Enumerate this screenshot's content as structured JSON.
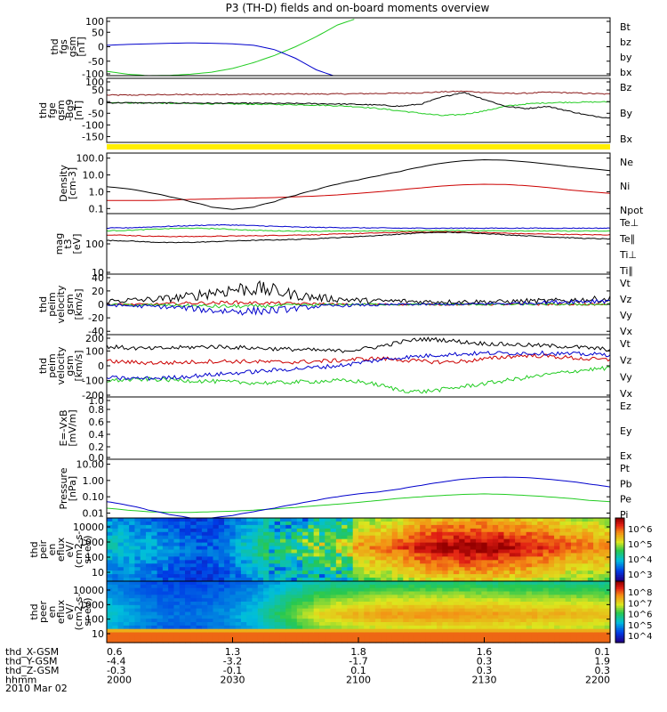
{
  "title": "P3 (TH-D) fields and on-board moments overview",
  "colors": {
    "black": "#000000",
    "red": "#cc0000",
    "green": "#22cc22",
    "blue": "#0000cc",
    "dark_red": "#8b1a1a",
    "yellow": "#ffee00"
  },
  "chart_data": {
    "type": "line",
    "time_axis": {
      "labels": [
        "2000",
        "2030",
        "2100",
        "2130",
        "2200"
      ],
      "range": [
        "20:00",
        "22:00"
      ]
    },
    "panels": [
      {
        "id": "fgs",
        "ylabel": [
          "thd",
          "fgs",
          "gsm",
          "[nT]"
        ],
        "yticks": [
          "100",
          "50",
          "0",
          "-50",
          "-100"
        ],
        "ylim": [
          -100,
          100
        ],
        "scale": "linear",
        "series": [
          {
            "name": "Bt",
            "color": "#000000",
            "values": []
          },
          {
            "name": "bz",
            "color": "#cc0000",
            "values": []
          },
          {
            "name": "by",
            "color": "#22cc22",
            "values": [
              -85,
              -95,
              -100,
              -99,
              -95,
              -88,
              -75,
              -55,
              -30,
              0,
              35,
              75,
              100,
              null,
              null,
              null,
              null,
              null,
              null,
              null,
              null,
              null,
              null,
              null,
              null
            ]
          },
          {
            "name": "bx",
            "color": "#0000cc",
            "values": [
              5,
              8,
              10,
              12,
              13,
              12,
              10,
              5,
              -10,
              -40,
              -80,
              -105,
              null,
              null,
              null,
              null,
              null,
              null,
              null,
              null,
              null,
              null,
              null,
              null,
              null
            ]
          }
        ]
      },
      {
        "id": "fgs_hires",
        "ylabel": [
          "thd",
          "fge",
          "gsm",
          "-Bg9",
          "[nT]"
        ],
        "yticks": [
          "100",
          "50",
          "0",
          "-50",
          "-100",
          "-150"
        ],
        "ylim": [
          -175,
          100
        ],
        "scale": "linear",
        "series": [
          {
            "name": "Bz",
            "color": "#8b1a1a",
            "values": [
              28,
              28,
              29,
              30,
              30,
              31,
              31,
              32,
              32,
              33,
              33,
              33,
              34,
              35,
              36,
              38,
              42,
              44,
              40,
              35,
              36,
              40,
              38,
              35,
              32
            ]
          },
          {
            "name": "By",
            "color": "#22cc22",
            "values": [
              -3,
              -5,
              -6,
              -7,
              -8,
              -9,
              -10,
              -11,
              -12,
              -13,
              -15,
              -18,
              -22,
              -30,
              -40,
              -50,
              -60,
              -55,
              -40,
              -20,
              -10,
              -5,
              -3,
              -2,
              -1
            ]
          },
          {
            "name": "Bx",
            "color": "#000000",
            "values": [
              -5,
              -5,
              -6,
              -6,
              -6,
              -7,
              -7,
              -7,
              -8,
              -8,
              -9,
              -10,
              -12,
              -15,
              -20,
              -10,
              20,
              40,
              10,
              -20,
              -30,
              -20,
              -40,
              -60,
              -70
            ]
          }
        ]
      },
      {
        "id": "density",
        "ylabel": [
          "Density",
          "[cm-3]"
        ],
        "yticks": [
          "100.0",
          "10.0",
          "1.0",
          "0.1"
        ],
        "ylim": [
          0.05,
          200
        ],
        "scale": "log",
        "series": [
          {
            "name": "Ne",
            "color": "#cc0000",
            "values": [
              0.3,
              0.3,
              0.3,
              0.32,
              0.35,
              0.37,
              0.4,
              0.42,
              0.45,
              0.5,
              0.55,
              0.65,
              0.8,
              1.0,
              1.3,
              1.7,
              2.2,
              2.6,
              2.8,
              2.7,
              2.3,
              1.8,
              1.3,
              1.0,
              0.8
            ]
          },
          {
            "name": "Ni",
            "color": "#000000",
            "values": [
              2.0,
              1.5,
              0.9,
              0.5,
              0.25,
              0.12,
              0.09,
              0.12,
              0.25,
              0.6,
              1.3,
              2.8,
              5,
              9,
              16,
              30,
              50,
              70,
              80,
              75,
              60,
              45,
              32,
              24,
              18
            ]
          },
          {
            "name": "Npot",
            "color": "#0000cc",
            "values": []
          }
        ]
      },
      {
        "id": "temperature",
        "ylabel": [
          "mag",
          "t3",
          "[eV]"
        ],
        "yticks": [
          "100",
          "10"
        ],
        "ylim": [
          10,
          1000
        ],
        "scale": "log",
        "series": [
          {
            "name": "Te⊥",
            "color": "#cc0000",
            "values": [
              200,
              190,
              180,
              175,
              175,
              178,
              182,
              185,
              190,
              195,
              200,
              210,
              220,
              230,
              240,
              245,
              250,
              245,
              235,
              225,
              215,
              210,
              205,
              200,
              200
            ]
          },
          {
            "name": "Te∥",
            "color": "#000000",
            "values": [
              130,
              125,
              115,
              110,
              112,
              118,
              125,
              130,
              135,
              140,
              150,
              160,
              175,
              190,
              210,
              230,
              240,
              235,
              220,
              200,
              185,
              170,
              160,
              150,
              145
            ]
          },
          {
            "name": "Ti⊥",
            "color": "#0000cc",
            "values": [
              330,
              340,
              360,
              380,
              400,
              420,
              420,
              400,
              380,
              360,
              350,
              345,
              340,
              335,
              330,
              330,
              330,
              330,
              330,
              330,
              330,
              330,
              330,
              330,
              330
            ]
          },
          {
            "name": "Ti∥",
            "color": "#22cc22",
            "values": [
              270,
              280,
              300,
              320,
              330,
              320,
              300,
              280,
              270,
              265,
              260,
              262,
              265,
              268,
              270,
              272,
              275,
              275,
              272,
              270,
              268,
              266,
              265,
              264,
              263
            ]
          }
        ]
      },
      {
        "id": "vel_efi",
        "ylabel": [
          "thd",
          "peim",
          "velocity",
          "gsm",
          "[km/s]"
        ],
        "yticks": [
          "40",
          "20",
          "0",
          "-20",
          "-40"
        ],
        "ylim": [
          -45,
          45
        ],
        "scale": "linear",
        "series": [
          {
            "name": "Vt",
            "color": "#000000",
            "values": [
              5,
              6,
              7,
              9,
              12,
              18,
              22,
              24,
              20,
              14,
              10,
              8,
              6,
              5,
              5,
              4,
              4,
              4,
              4,
              4,
              5,
              5,
              6,
              7,
              8
            ]
          },
          {
            "name": "Vz",
            "color": "#cc0000",
            "values": [
              0,
              0,
              0,
              1,
              2,
              2,
              3,
              2,
              2,
              1,
              1,
              0,
              0,
              0,
              0,
              0,
              0,
              0,
              0,
              0,
              0,
              0,
              0,
              0,
              0
            ]
          },
          {
            "name": "Vy",
            "color": "#22cc22",
            "values": [
              0,
              -1,
              -1,
              -1,
              -2,
              -3,
              -3,
              -3,
              -2,
              -1,
              -1,
              0,
              0,
              0,
              0,
              0,
              0,
              0,
              0,
              0,
              0,
              0,
              0,
              0,
              0
            ]
          },
          {
            "name": "Vx",
            "color": "#0000cc",
            "values": [
              -1,
              -2,
              -3,
              -4,
              -6,
              -9,
              -10,
              -10,
              -9,
              -6,
              -3,
              -2,
              -1,
              -1,
              0,
              0,
              0,
              0,
              1,
              1,
              2,
              3,
              4,
              5,
              6
            ]
          }
        ]
      },
      {
        "id": "vel_esa",
        "ylabel": [
          "thd",
          "peim",
          "velocity",
          "gsm",
          "[km/s]"
        ],
        "yticks": [
          "200",
          "100",
          "0",
          "-100",
          "-200"
        ],
        "ylim": [
          -210,
          210
        ],
        "scale": "linear",
        "series": [
          {
            "name": "Vt",
            "color": "#000000",
            "values": [
              130,
              120,
              115,
              120,
              125,
              130,
              125,
              120,
              115,
              110,
              105,
              100,
              110,
              130,
              160,
              180,
              175,
              160,
              150,
              145,
              140,
              135,
              130,
              120,
              110
            ]
          },
          {
            "name": "Vz",
            "color": "#cc0000",
            "values": [
              30,
              25,
              20,
              20,
              25,
              30,
              30,
              28,
              25,
              25,
              30,
              35,
              45,
              50,
              40,
              30,
              25,
              30,
              45,
              60,
              70,
              65,
              55,
              45,
              40
            ]
          },
          {
            "name": "Vy",
            "color": "#22cc22",
            "values": [
              -100,
              -95,
              -90,
              -95,
              -100,
              -105,
              -110,
              -115,
              -115,
              -110,
              -105,
              -100,
              -105,
              -130,
              -165,
              -175,
              -160,
              -140,
              -120,
              -100,
              -80,
              -60,
              -40,
              -25,
              -15
            ]
          },
          {
            "name": "Vx",
            "color": "#0000cc",
            "values": [
              -80,
              -85,
              -85,
              -80,
              -70,
              -60,
              -50,
              -40,
              -30,
              -20,
              -10,
              0,
              20,
              40,
              55,
              65,
              75,
              80,
              85,
              85,
              85,
              85,
              80,
              78,
              75
            ]
          }
        ]
      },
      {
        "id": "efield",
        "ylabel": [
          "E=-VxB",
          "[mV/m]"
        ],
        "yticks": [
          "1.0",
          "0.8",
          "0.6",
          "0.4",
          "0.2",
          "0.0"
        ],
        "ylim": [
          0,
          1
        ],
        "scale": "linear",
        "series": [
          {
            "name": "Ez",
            "color": "#cc0000",
            "values": []
          },
          {
            "name": "Ey",
            "color": "#22cc22",
            "values": []
          },
          {
            "name": "Ex",
            "color": "#0000cc",
            "values": []
          }
        ]
      },
      {
        "id": "pressure",
        "ylabel": [
          "Pressure",
          "[nPa]"
        ],
        "yticks": [
          "10.00",
          "1.00",
          "0.10",
          "0.01"
        ],
        "ylim": [
          0.005,
          20
        ],
        "scale": "log",
        "series": [
          {
            "name": "Pt",
            "color": "#000000",
            "values": []
          },
          {
            "name": "Pb",
            "color": "#cc0000",
            "values": []
          },
          {
            "name": "Pe",
            "color": "#22cc22",
            "values": [
              0.02,
              0.015,
              0.012,
              0.011,
              0.011,
              0.012,
              0.013,
              0.015,
              0.018,
              0.022,
              0.028,
              0.035,
              0.045,
              0.06,
              0.08,
              0.1,
              0.12,
              0.14,
              0.15,
              0.14,
              0.12,
              0.1,
              0.08,
              0.06,
              0.05
            ]
          },
          {
            "name": "Pi",
            "color": "#0000cc",
            "values": [
              0.05,
              0.03,
              0.015,
              0.008,
              0.005,
              0.005,
              0.007,
              0.012,
              0.02,
              0.035,
              0.06,
              0.1,
              0.15,
              0.2,
              0.3,
              0.5,
              0.8,
              1.2,
              1.5,
              1.6,
              1.5,
              1.2,
              0.9,
              0.6,
              0.4
            ]
          }
        ]
      },
      {
        "id": "ion_spec",
        "type": "heatmap",
        "ylabel": [
          "thd",
          "peir",
          "en",
          "eflux",
          "eV/",
          "(cm2-s-",
          "sr-eV)"
        ],
        "yticks": [
          "10000",
          "1000",
          "100",
          "10"
        ],
        "colorbar_ticks": [
          "10^6",
          "10^5",
          "10^4",
          "10^3"
        ],
        "intensity_profile": [
          0.35,
          0.33,
          0.3,
          0.25,
          0.2,
          0.2,
          0.3,
          0.4,
          0.55,
          0.6,
          0.65,
          0.7,
          0.75,
          0.8,
          0.85,
          0.95,
          0.98,
          1.0,
          1.0,
          0.98,
          0.95,
          0.9,
          0.85,
          0.8,
          0.78
        ]
      },
      {
        "id": "elec_spec",
        "type": "heatmap",
        "ylabel": [
          "thd",
          "peer",
          "en",
          "eflux",
          "eV/",
          "(cm2-s-",
          "sr-eV)"
        ],
        "yticks": [
          "10000",
          "1000",
          "100",
          "10"
        ],
        "colorbar_ticks": [
          "10^8",
          "10^7",
          "10^6",
          "10^5",
          "10^4"
        ],
        "intensity_profile": [
          0.25,
          0.2,
          0.15,
          0.12,
          0.12,
          0.14,
          0.18,
          0.25,
          0.35,
          0.45,
          0.55,
          0.6,
          0.62,
          0.65,
          0.66,
          0.67,
          0.67,
          0.67,
          0.66,
          0.65,
          0.64,
          0.63,
          0.62,
          0.62,
          0.6
        ]
      }
    ],
    "ephemeris": {
      "rows": [
        {
          "label": "thd_X-GSM",
          "values": [
            "0.6",
            "1.3",
            "1.8",
            "1.6",
            "0.1"
          ]
        },
        {
          "label": "thd_Y-GSM",
          "values": [
            "-4.4",
            "-3.2",
            "-1.7",
            "0.3",
            "1.9"
          ]
        },
        {
          "label": "thd_Z-GSM",
          "values": [
            "-0.3",
            "-0.1",
            "0.1",
            "0.3",
            "0.3"
          ]
        },
        {
          "label": "hhmm",
          "values": [
            "2000",
            "2030",
            "2100",
            "2130",
            "2200"
          ]
        }
      ],
      "date": "2010 Mar 02"
    }
  }
}
